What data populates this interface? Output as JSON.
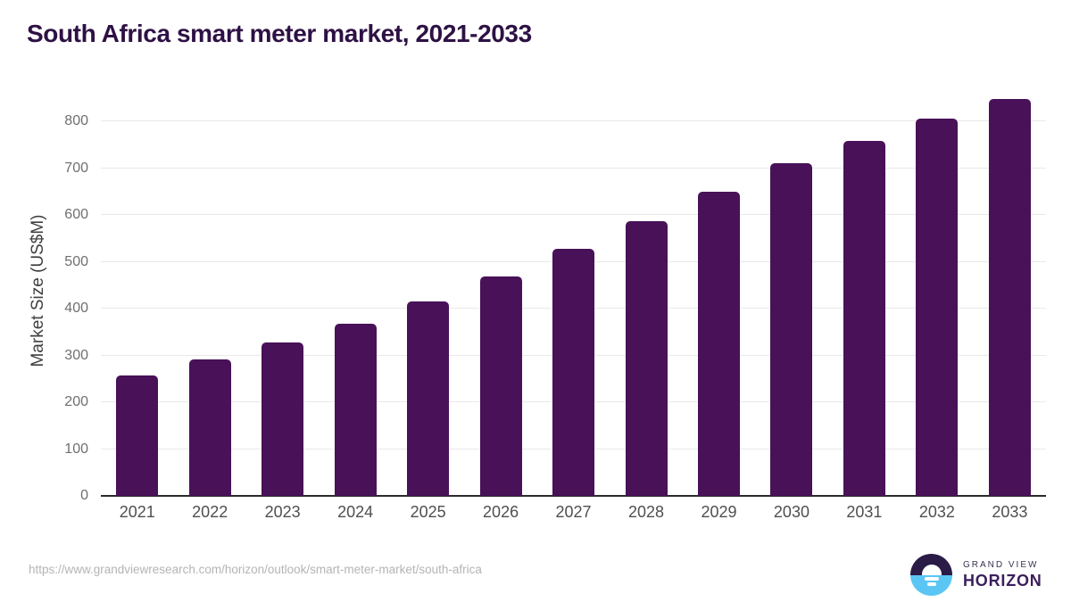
{
  "title": "South Africa smart meter market, 2021-2033",
  "chart_data": {
    "type": "bar",
    "title": "South Africa smart meter market, 2021-2033",
    "categories": [
      "2021",
      "2022",
      "2023",
      "2024",
      "2025",
      "2026",
      "2027",
      "2028",
      "2029",
      "2030",
      "2031",
      "2032",
      "2033"
    ],
    "values": [
      258,
      291,
      327,
      368,
      415,
      468,
      527,
      586,
      649,
      710,
      758,
      806,
      848
    ],
    "xlabel": "",
    "ylabel": "Market Size (US$M)",
    "ylim": [
      0,
      800
    ],
    "ytick_step": 100,
    "grid": true,
    "legend_position": "none",
    "bar_color": "#481158"
  },
  "footer": {
    "source_url": "https://www.grandviewresearch.com/horizon/outlook/smart-meter-market/south-africa",
    "logo_line1": "GRAND VIEW",
    "logo_line2": "HORIZON"
  },
  "colors": {
    "title_text": "#2e1144",
    "bar": "#481158",
    "x_tick_text": "#4f4f4f",
    "y_tick_text": "#6f6f6f",
    "gridline": "#e9e9e9",
    "baseline": "#2b2b2b",
    "url_text": "#b4b4b4",
    "logo_dark": "#2b1b47",
    "logo_blue": "#5bc6f3",
    "logo_text": "#3b1e5b"
  }
}
